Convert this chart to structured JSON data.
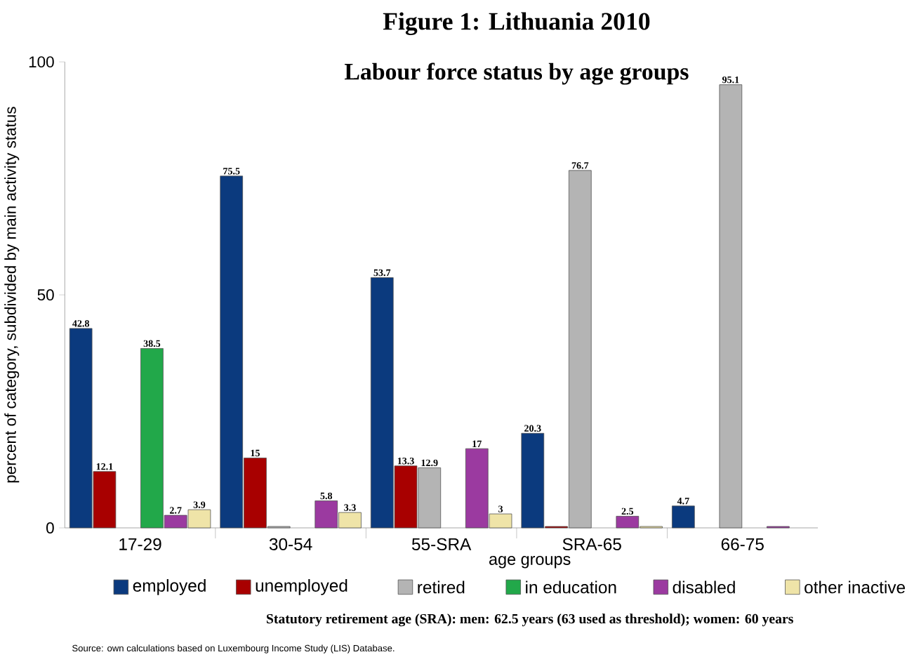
{
  "chart_data": {
    "type": "bar",
    "title": "Figure 1: Lithuania 2010",
    "subtitle": "Labour force status by age groups",
    "xlabel": "age groups",
    "ylabel": "percent of category, subdivided by main activity status",
    "categories": [
      "17-29",
      "30-54",
      "55-SRA",
      "SRA-65",
      "66-75"
    ],
    "series": [
      {
        "name": "employed",
        "color": "#0b3a7e",
        "values": [
          42.8,
          75.5,
          53.7,
          20.3,
          4.7
        ],
        "value_labels": [
          "42.8",
          "75.5",
          "53.7",
          "20.3",
          "4.7"
        ]
      },
      {
        "name": "unemployed",
        "color": "#a80000",
        "values": [
          12.1,
          15,
          13.3,
          0.3,
          null
        ],
        "value_labels": [
          "12.1",
          "15",
          "13.3",
          null,
          null
        ]
      },
      {
        "name": "retired",
        "color": "#b4b4b4",
        "values": [
          null,
          0.3,
          12.9,
          76.7,
          95.1
        ],
        "value_labels": [
          null,
          null,
          "12.9",
          "76.7",
          "95.1"
        ]
      },
      {
        "name": "in education",
        "color": "#22a84a",
        "values": [
          38.5,
          null,
          null,
          null,
          null
        ],
        "value_labels": [
          "38.5",
          null,
          null,
          null,
          null
        ]
      },
      {
        "name": "disabled",
        "color": "#9b3aa0",
        "values": [
          2.7,
          5.8,
          17,
          2.5,
          0.3
        ],
        "value_labels": [
          "2.7",
          "5.8",
          "17",
          "2.5",
          null
        ]
      },
      {
        "name": "other inactive",
        "color": "#efe4a8",
        "values": [
          3.9,
          3.3,
          3,
          0.3,
          null
        ],
        "value_labels": [
          "3.9",
          "3.3",
          "3",
          null,
          null
        ]
      }
    ],
    "ylim": [
      0,
      100
    ],
    "yticks": [
      0,
      50,
      100
    ],
    "legend": "bottom",
    "annotations": [
      "Statutory retirement age (SRA): men: 62.5 years (63 used as threshold); women: 60 years",
      "Source: own calculations based on Luxembourg Income Study (LIS) Database."
    ]
  }
}
